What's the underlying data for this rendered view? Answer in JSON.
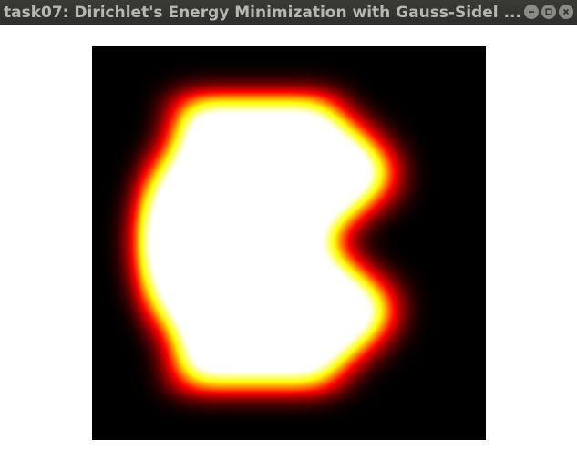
{
  "window": {
    "title": "task07: Dirichlet's Energy Minimization with Gauss-Sidel ...",
    "controls": {
      "minimize": "minimize-icon",
      "maximize": "maximize-icon",
      "close": "close-icon"
    }
  },
  "visualization": {
    "type": "heatmap",
    "colormap": "hot",
    "colors": [
      "#000000",
      "#ff0000",
      "#ffff00",
      "#ffffff"
    ],
    "notch_side": "right"
  }
}
